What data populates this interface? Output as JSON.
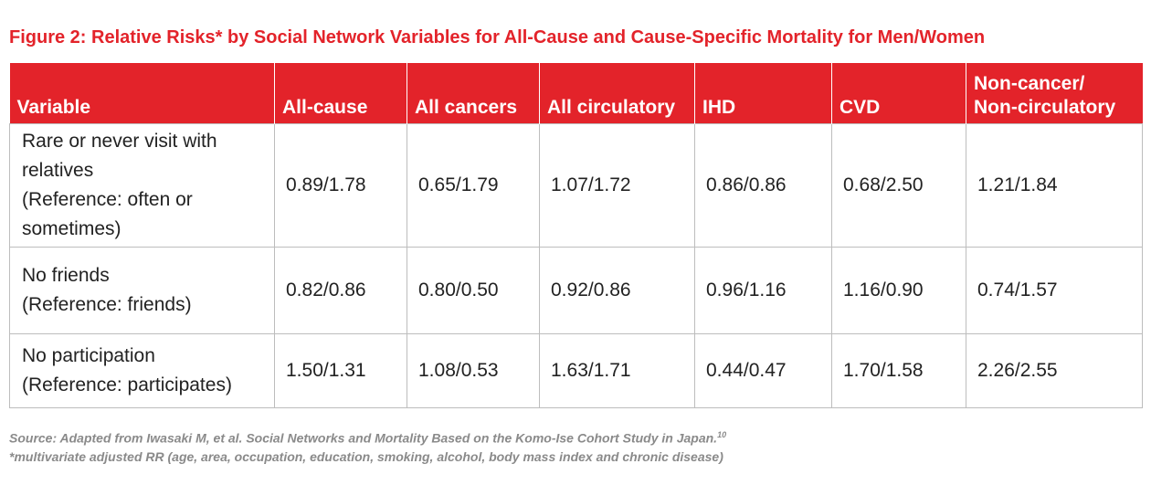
{
  "title": "Figure 2: Relative Risks* by Social Network Variables for All-Cause and Cause-Specific Mortality for Men/Women",
  "columns": [
    "Variable",
    "All-cause",
    "All cancers",
    "All circulatory",
    "IHD",
    "CVD",
    "Non-cancer/",
    "Non-circulatory"
  ],
  "rows": [
    {
      "variable": [
        "Rare or never visit with",
        "relatives",
        "(Reference: often or",
        "sometimes)"
      ],
      "values": [
        "0.89/1.78",
        "0.65/1.79",
        "1.07/1.72",
        "0.86/0.86",
        "0.68/2.50",
        "1.21/1.84"
      ]
    },
    {
      "variable": [
        "No friends",
        "(Reference: friends)"
      ],
      "values": [
        "0.82/0.86",
        "0.80/0.50",
        "0.92/0.86",
        "0.96/1.16",
        "1.16/0.90",
        "0.74/1.57"
      ]
    },
    {
      "variable": [
        "No participation",
        "(Reference: participates)"
      ],
      "values": [
        "1.50/1.31",
        "1.08/0.53",
        "1.63/1.71",
        "0.44/0.47",
        "1.70/1.58",
        "2.26/2.55"
      ]
    }
  ],
  "source": "Source: Adapted from Iwasaki M, et al. Social Networks and Mortality Based on the Komo-Ise Cohort Study in Japan.",
  "source_ref": "10",
  "footnote": "*multivariate adjusted RR (age, area, occupation, education, smoking, alcohol, body mass index and chronic disease)"
}
